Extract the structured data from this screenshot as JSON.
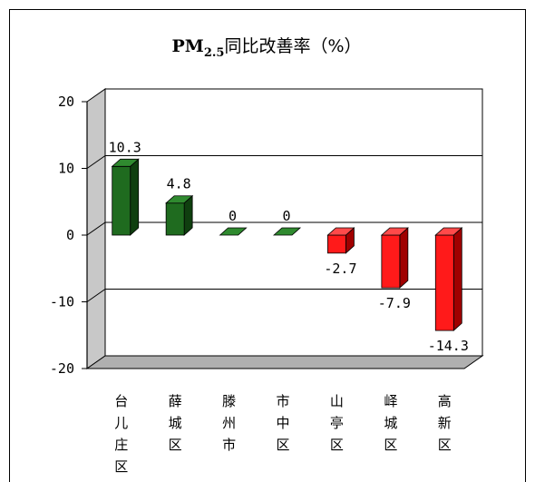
{
  "chart_data": {
    "type": "bar",
    "title": {
      "pre": "PM",
      "sub": "2.5",
      "post": "同比改善率（%）"
    },
    "xlabel": "",
    "ylabel": "",
    "categories": [
      "台儿庄区",
      "薛城区",
      "滕州市",
      "市中区",
      "山亭区",
      "峄城区",
      "高新区"
    ],
    "values": [
      10.3,
      4.8,
      0,
      0,
      -2.7,
      -7.9,
      -14.3
    ],
    "data_labels": [
      "10.3",
      "4.8",
      "0",
      "0",
      "-2.7",
      "-7.9",
      "-14.3"
    ],
    "ylim": [
      -20,
      20
    ],
    "yticks": [
      20,
      10,
      0,
      -10,
      -20
    ],
    "grid": true,
    "view": "3d",
    "colors": {
      "positive": "#1f6b1f",
      "positive_side": "#0f3f0f",
      "positive_top": "#2f8a2f",
      "negative": "#ff1a1a",
      "negative_side": "#a00000",
      "negative_top": "#ff4a4a",
      "wall": "#c8c8c8",
      "floor": "#b0b0b0"
    }
  }
}
